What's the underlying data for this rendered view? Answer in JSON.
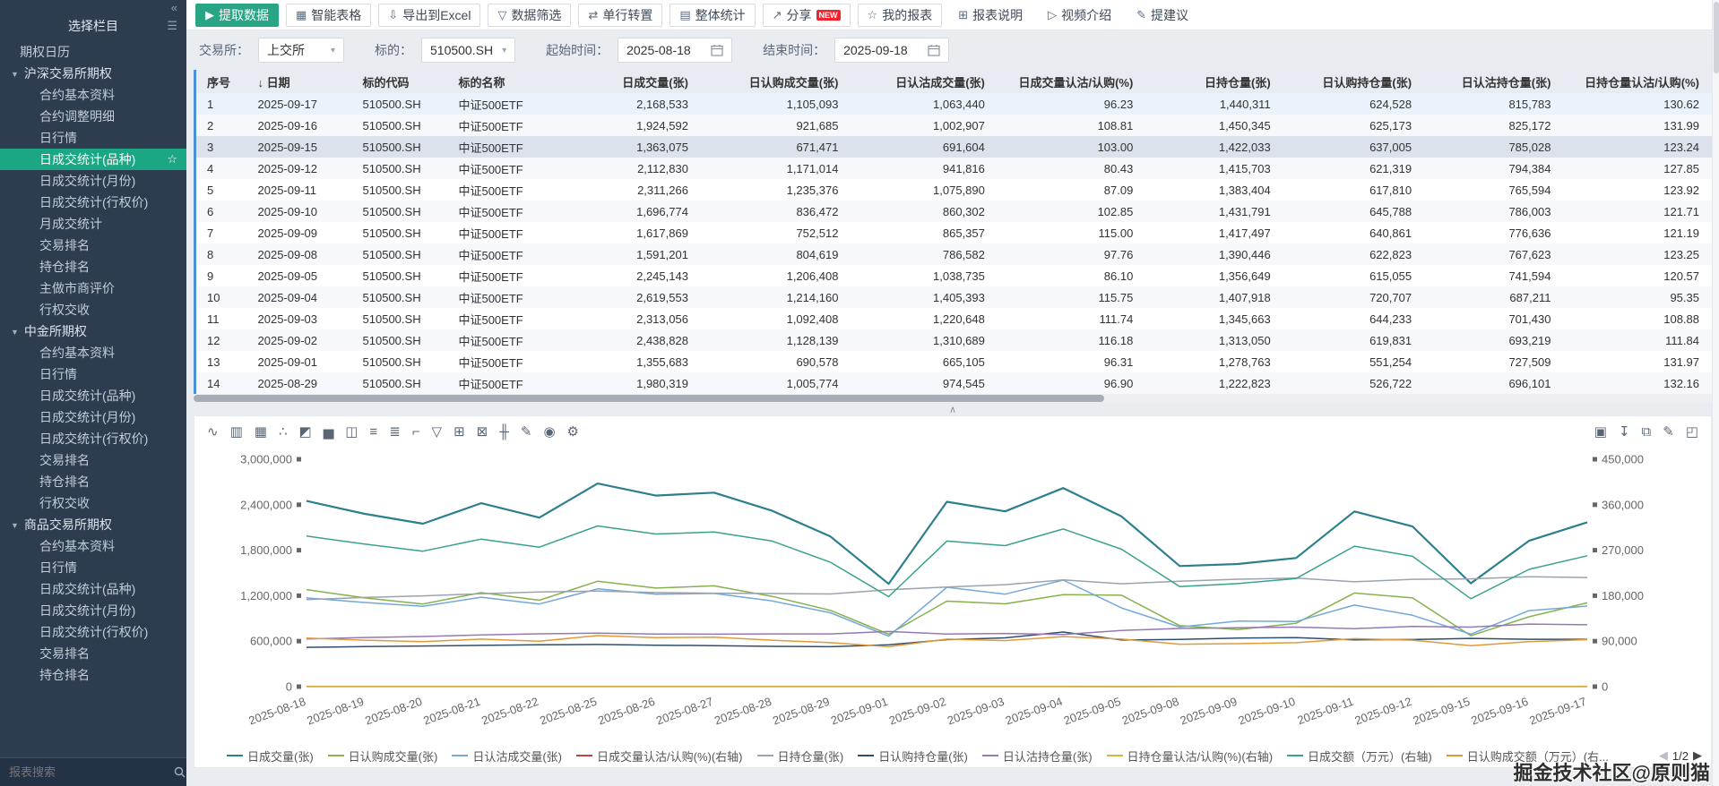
{
  "sidebar": {
    "collapse_icon": "«",
    "title": "选择栏目",
    "title_icon": "☰",
    "group_caret": "▼",
    "selected_star": "☆",
    "search_placeholder": "报表搜索",
    "tree": [
      {
        "label": "期权日历"
      },
      {
        "label": "沪深交易所期权",
        "selected": "日成交统计(品种)",
        "items": [
          "合约基本资料",
          "合约调整明细",
          "日行情",
          "日成交统计(品种)",
          "日成交统计(月份)",
          "日成交统计(行权价)",
          "月成交统计",
          "交易排名",
          "持仓排名",
          "主做市商评价",
          "行权交收"
        ]
      },
      {
        "label": "中金所期权",
        "items": [
          "合约基本资料",
          "日行情",
          "日成交统计(品种)",
          "日成交统计(月份)",
          "日成交统计(行权价)",
          "交易排名",
          "持仓排名",
          "行权交收"
        ]
      },
      {
        "label": "商品交易所期权",
        "items": [
          "合约基本资料",
          "日行情",
          "日成交统计(品种)",
          "日成交统计(月份)",
          "日成交统计(行权价)",
          "交易排名",
          "持仓排名"
        ]
      }
    ]
  },
  "toolbar": {
    "buttons": [
      {
        "name": "extract-data-button",
        "label": "提取数据",
        "icon": "▶",
        "icon_name": "play-icon",
        "primary": true
      },
      {
        "name": "smart-table-button",
        "label": "智能表格",
        "icon": "▦",
        "icon_name": "table-icon"
      },
      {
        "name": "export-excel-button",
        "label": "导出到Excel",
        "icon": "⇩",
        "icon_name": "export-icon"
      },
      {
        "name": "data-filter-button",
        "label": "数据筛选",
        "icon": "▽",
        "icon_name": "filter-icon"
      },
      {
        "name": "transpose-row-button",
        "label": "单行转置",
        "icon": "⇄",
        "icon_name": "transpose-icon"
      },
      {
        "name": "overall-stats-button",
        "label": "整体统计",
        "icon": "▤",
        "icon_name": "stats-icon"
      },
      {
        "name": "share-button",
        "label": "分享",
        "icon": "↗",
        "icon_name": "share-icon",
        "badge": "NEW"
      },
      {
        "name": "my-reports-button",
        "label": "我的报表",
        "icon": "☆",
        "icon_name": "star-icon"
      },
      {
        "name": "report-help-button",
        "label": "报表说明",
        "icon": "⊞",
        "icon_name": "document-icon",
        "plain": true
      },
      {
        "name": "video-intro-button",
        "label": "视频介绍",
        "icon": "▷",
        "icon_name": "video-icon",
        "plain": true
      },
      {
        "name": "suggestion-button",
        "label": "提建议",
        "icon": "✎",
        "icon_name": "suggestion-icon",
        "plain": true
      }
    ]
  },
  "filters": {
    "exchange_label": "交易所：",
    "exchange_value": "上交所",
    "underlying_label": "标的：",
    "underlying_value": "510500.SH",
    "start_label": "起始时间：",
    "start_value": "2025-08-18",
    "end_label": "结束时间：",
    "end_value": "2025-09-18",
    "caret": "▾"
  },
  "table": {
    "columns": [
      "序号",
      "日期",
      "标的代码",
      "标的名称",
      "日成交量(张)",
      "日认购成交量(张)",
      "日认沽成交量(张)",
      "日成交量认沽/认购(%)",
      "日持仓量(张)",
      "日认购持仓量(张)",
      "日认沽持仓量(张)",
      "日持仓量认沽/认购(%)"
    ],
    "sort_column": "日期",
    "sort_icon": "↓",
    "selected_row_index": 2,
    "highlighted_row_index": 0,
    "rows": [
      [
        "1",
        "2025-09-17",
        "510500.SH",
        "中证500ETF",
        "2,168,533",
        "1,105,093",
        "1,063,440",
        "96.23",
        "1,440,311",
        "624,528",
        "815,783",
        "130.62"
      ],
      [
        "2",
        "2025-09-16",
        "510500.SH",
        "中证500ETF",
        "1,924,592",
        "921,685",
        "1,002,907",
        "108.81",
        "1,450,345",
        "625,173",
        "825,172",
        "131.99"
      ],
      [
        "3",
        "2025-09-15",
        "510500.SH",
        "中证500ETF",
        "1,363,075",
        "671,471",
        "691,604",
        "103.00",
        "1,422,033",
        "637,005",
        "785,028",
        "123.24"
      ],
      [
        "4",
        "2025-09-12",
        "510500.SH",
        "中证500ETF",
        "2,112,830",
        "1,171,014",
        "941,816",
        "80.43",
        "1,415,703",
        "621,319",
        "794,384",
        "127.85"
      ],
      [
        "5",
        "2025-09-11",
        "510500.SH",
        "中证500ETF",
        "2,311,266",
        "1,235,376",
        "1,075,890",
        "87.09",
        "1,383,404",
        "617,810",
        "765,594",
        "123.92"
      ],
      [
        "6",
        "2025-09-10",
        "510500.SH",
        "中证500ETF",
        "1,696,774",
        "836,472",
        "860,302",
        "102.85",
        "1,431,791",
        "645,788",
        "786,003",
        "121.71"
      ],
      [
        "7",
        "2025-09-09",
        "510500.SH",
        "中证500ETF",
        "1,617,869",
        "752,512",
        "865,357",
        "115.00",
        "1,417,497",
        "640,861",
        "776,636",
        "121.19"
      ],
      [
        "8",
        "2025-09-08",
        "510500.SH",
        "中证500ETF",
        "1,591,201",
        "804,619",
        "786,582",
        "97.76",
        "1,390,446",
        "622,823",
        "767,623",
        "123.25"
      ],
      [
        "9",
        "2025-09-05",
        "510500.SH",
        "中证500ETF",
        "2,245,143",
        "1,206,408",
        "1,038,735",
        "86.10",
        "1,356,649",
        "615,055",
        "741,594",
        "120.57"
      ],
      [
        "10",
        "2025-09-04",
        "510500.SH",
        "中证500ETF",
        "2,619,553",
        "1,214,160",
        "1,405,393",
        "115.75",
        "1,407,918",
        "720,707",
        "687,211",
        "95.35"
      ],
      [
        "11",
        "2025-09-03",
        "510500.SH",
        "中证500ETF",
        "2,313,056",
        "1,092,408",
        "1,220,648",
        "111.74",
        "1,345,663",
        "644,233",
        "701,430",
        "108.88"
      ],
      [
        "12",
        "2025-09-02",
        "510500.SH",
        "中证500ETF",
        "2,438,828",
        "1,128,139",
        "1,310,689",
        "116.18",
        "1,313,050",
        "619,831",
        "693,219",
        "111.84"
      ],
      [
        "13",
        "2025-09-01",
        "510500.SH",
        "中证500ETF",
        "1,355,683",
        "690,578",
        "665,105",
        "96.31",
        "1,278,763",
        "551,254",
        "727,509",
        "131.97"
      ],
      [
        "14",
        "2025-08-29",
        "510500.SH",
        "中证500ETF",
        "1,980,319",
        "1,005,774",
        "974,545",
        "96.90",
        "1,222,823",
        "526,722",
        "696,101",
        "132.16"
      ]
    ]
  },
  "chart_panel": {
    "left_tools": [
      {
        "name": "line-chart-icon",
        "glyph": "∿"
      },
      {
        "name": "bar-chart-icon",
        "glyph": "▥"
      },
      {
        "name": "stacked-bar-chart-icon",
        "glyph": "▦"
      },
      {
        "name": "scatter-chart-icon",
        "glyph": "∴"
      },
      {
        "name": "area-chart-icon",
        "glyph": "◩"
      },
      {
        "name": "histogram-icon",
        "glyph": "▅"
      },
      {
        "name": "waterfall-chart-icon",
        "glyph": "◫"
      },
      {
        "name": "horizontal-bar-icon",
        "glyph": "≡"
      },
      {
        "name": "horizontal-stacked-bar-icon",
        "glyph": "≣"
      },
      {
        "name": "step-line-icon",
        "glyph": "⌐"
      },
      {
        "name": "funnel-chart-icon",
        "glyph": "▽"
      },
      {
        "name": "grid-chart-icon",
        "glyph": "⊞"
      },
      {
        "name": "combo-chart-icon",
        "glyph": "⊠"
      },
      {
        "name": "k-line-icon",
        "glyph": "╫"
      },
      {
        "name": "edit-chart-icon",
        "glyph": "✎"
      },
      {
        "name": "zoom-icon",
        "glyph": "◉"
      },
      {
        "name": "settings-icon",
        "glyph": "⚙"
      }
    ],
    "right_tools": [
      {
        "name": "save-image-icon",
        "glyph": "▣"
      },
      {
        "name": "download-icon",
        "glyph": "↧"
      },
      {
        "name": "copy-icon",
        "glyph": "⧉"
      },
      {
        "name": "edit-icon",
        "glyph": "✎"
      },
      {
        "name": "fullscreen-icon",
        "glyph": "◰"
      }
    ],
    "legend_prev": "◀",
    "legend_page": "1/2",
    "legend_next": "▶"
  },
  "chart_data": {
    "type": "line",
    "grid": false,
    "legend_position": "bottom",
    "dates": [
      "2025-08-18",
      "2025-08-19",
      "2025-08-20",
      "2025-08-21",
      "2025-08-22",
      "2025-08-25",
      "2025-08-26",
      "2025-08-27",
      "2025-08-28",
      "2025-08-29",
      "2025-09-01",
      "2025-09-02",
      "2025-09-03",
      "2025-09-04",
      "2025-09-05",
      "2025-09-08",
      "2025-09-09",
      "2025-09-10",
      "2025-09-11",
      "2025-09-12",
      "2025-09-15",
      "2025-09-16",
      "2025-09-17"
    ],
    "left_axis": {
      "min": 0,
      "max": 3000000,
      "ticks": [
        0,
        600000,
        1200000,
        1800000,
        2400000,
        3000000
      ]
    },
    "right_axis": {
      "min": 0,
      "max": 450000,
      "ticks": [
        0,
        90000,
        180000,
        270000,
        360000,
        450000
      ]
    },
    "series": [
      {
        "name": "日成交量(张)",
        "legend": "日成交量(张)",
        "axis": "left",
        "color": "#2c7f8d",
        "width": 2.2,
        "values": [
          2450000,
          2280000,
          2150000,
          2420000,
          2230000,
          2680000,
          2520000,
          2560000,
          2320000,
          1980319,
          1355683,
          2438828,
          2313056,
          2619553,
          2245143,
          1591201,
          1617869,
          1696774,
          2311266,
          2112830,
          1363075,
          1924592,
          2168533
        ]
      },
      {
        "name": "日认购成交量(张)",
        "legend": "日认购成交量(张)",
        "axis": "left",
        "color": "#86b14e",
        "width": 1.5,
        "values": [
          1280000,
          1170000,
          1090000,
          1240000,
          1140000,
          1390000,
          1300000,
          1330000,
          1190000,
          1005774,
          690578,
          1128139,
          1092408,
          1214160,
          1206408,
          804619,
          752512,
          836472,
          1235376,
          1171014,
          671471,
          921685,
          1105093
        ]
      },
      {
        "name": "日认沽成交量(张)",
        "legend": "日认沽成交量(张)",
        "axis": "left",
        "color": "#74a8d8",
        "width": 1.5,
        "values": [
          1170000,
          1110000,
          1060000,
          1180000,
          1090000,
          1290000,
          1220000,
          1230000,
          1130000,
          974545,
          665105,
          1310689,
          1220648,
          1405393,
          1038735,
          786582,
          865357,
          860302,
          1075890,
          941816,
          691604,
          1002907,
          1063440
        ]
      },
      {
        "name": "日成交量认沽/认购(%)(右轴)",
        "legend": "日成交量认沽/认购(%)(右轴)",
        "axis": "right",
        "color": "#c0443d",
        "width": 1.5,
        "values": [
          91.4,
          94.9,
          97.2,
          95.2,
          95.6,
          92.8,
          93.8,
          92.5,
          95.0,
          96.9,
          96.31,
          116.18,
          111.74,
          115.75,
          86.1,
          97.76,
          115.0,
          102.85,
          87.09,
          80.43,
          103.0,
          108.81,
          96.23
        ]
      },
      {
        "name": "日持仓量(张)",
        "legend": "日持仓量(张)",
        "axis": "left",
        "color": "#9aa3ae",
        "width": 1.5,
        "values": [
          1148000,
          1176000,
          1198000,
          1226000,
          1248000,
          1262000,
          1241000,
          1233000,
          1228000,
          1222823,
          1278763,
          1313050,
          1345663,
          1407918,
          1356649,
          1390446,
          1417497,
          1431791,
          1383404,
          1415703,
          1422033,
          1450345,
          1440311
        ]
      },
      {
        "name": "日认购持仓量(张)",
        "legend": "日认购持仓量(张)",
        "axis": "left",
        "color": "#2f4e6f",
        "width": 1.5,
        "values": [
          519000,
          528000,
          536000,
          544000,
          551000,
          556000,
          547000,
          541000,
          532000,
          526722,
          551254,
          619831,
          644233,
          720707,
          615055,
          622823,
          640861,
          645788,
          617810,
          621319,
          637005,
          625173,
          624528
        ]
      },
      {
        "name": "日认沽持仓量(张)",
        "legend": "日认沽持仓量(张)",
        "axis": "left",
        "color": "#9678b6",
        "width": 1.5,
        "values": [
          629000,
          648000,
          662000,
          682000,
          697000,
          706000,
          694000,
          692000,
          696000,
          696101,
          727509,
          693219,
          701430,
          687211,
          741594,
          767623,
          776636,
          786003,
          765594,
          794384,
          785028,
          825172,
          815783
        ]
      },
      {
        "name": "日持仓量认沽/认购(%)(右轴)",
        "legend": "日持仓量认沽/认购(%)(右轴)",
        "axis": "right",
        "color": "#d9b23c",
        "width": 1.5,
        "values": [
          121.2,
          122.7,
          123.5,
          125.4,
          126.5,
          127.0,
          126.9,
          127.9,
          130.8,
          132.16,
          131.97,
          111.84,
          108.88,
          95.35,
          120.57,
          123.25,
          121.19,
          121.71,
          123.92,
          127.85,
          123.24,
          131.99,
          130.62
        ]
      },
      {
        "name": "日成交额（万元）(右轴)",
        "legend": "日成交额（万元）(右轴)",
        "axis": "right",
        "color": "#3aa08f",
        "width": 1.5,
        "values": [
          298000,
          282000,
          268000,
          292000,
          276000,
          318000,
          302000,
          306000,
          288000,
          246000,
          178000,
          288000,
          279000,
          312000,
          272000,
          198000,
          204000,
          214000,
          278000,
          258000,
          174000,
          232000,
          259000
        ]
      },
      {
        "name": "日认购成交额（万元）(右轴)",
        "legend": "日认购成交额（万元）(右...",
        "axis": "right",
        "color": "#e09a3a",
        "width": 1.5,
        "values": [
          96000,
          92000,
          89000,
          94000,
          90000,
          101000,
          97000,
          98000,
          92000,
          87000,
          79000,
          94000,
          91000,
          99000,
          94000,
          84000,
          85000,
          87000,
          95000,
          92000,
          81000,
          89000,
          93000
        ]
      }
    ]
  },
  "misc": {
    "splitter_glyph": "∧",
    "watermark": "掘金技术社区@原则猫"
  }
}
